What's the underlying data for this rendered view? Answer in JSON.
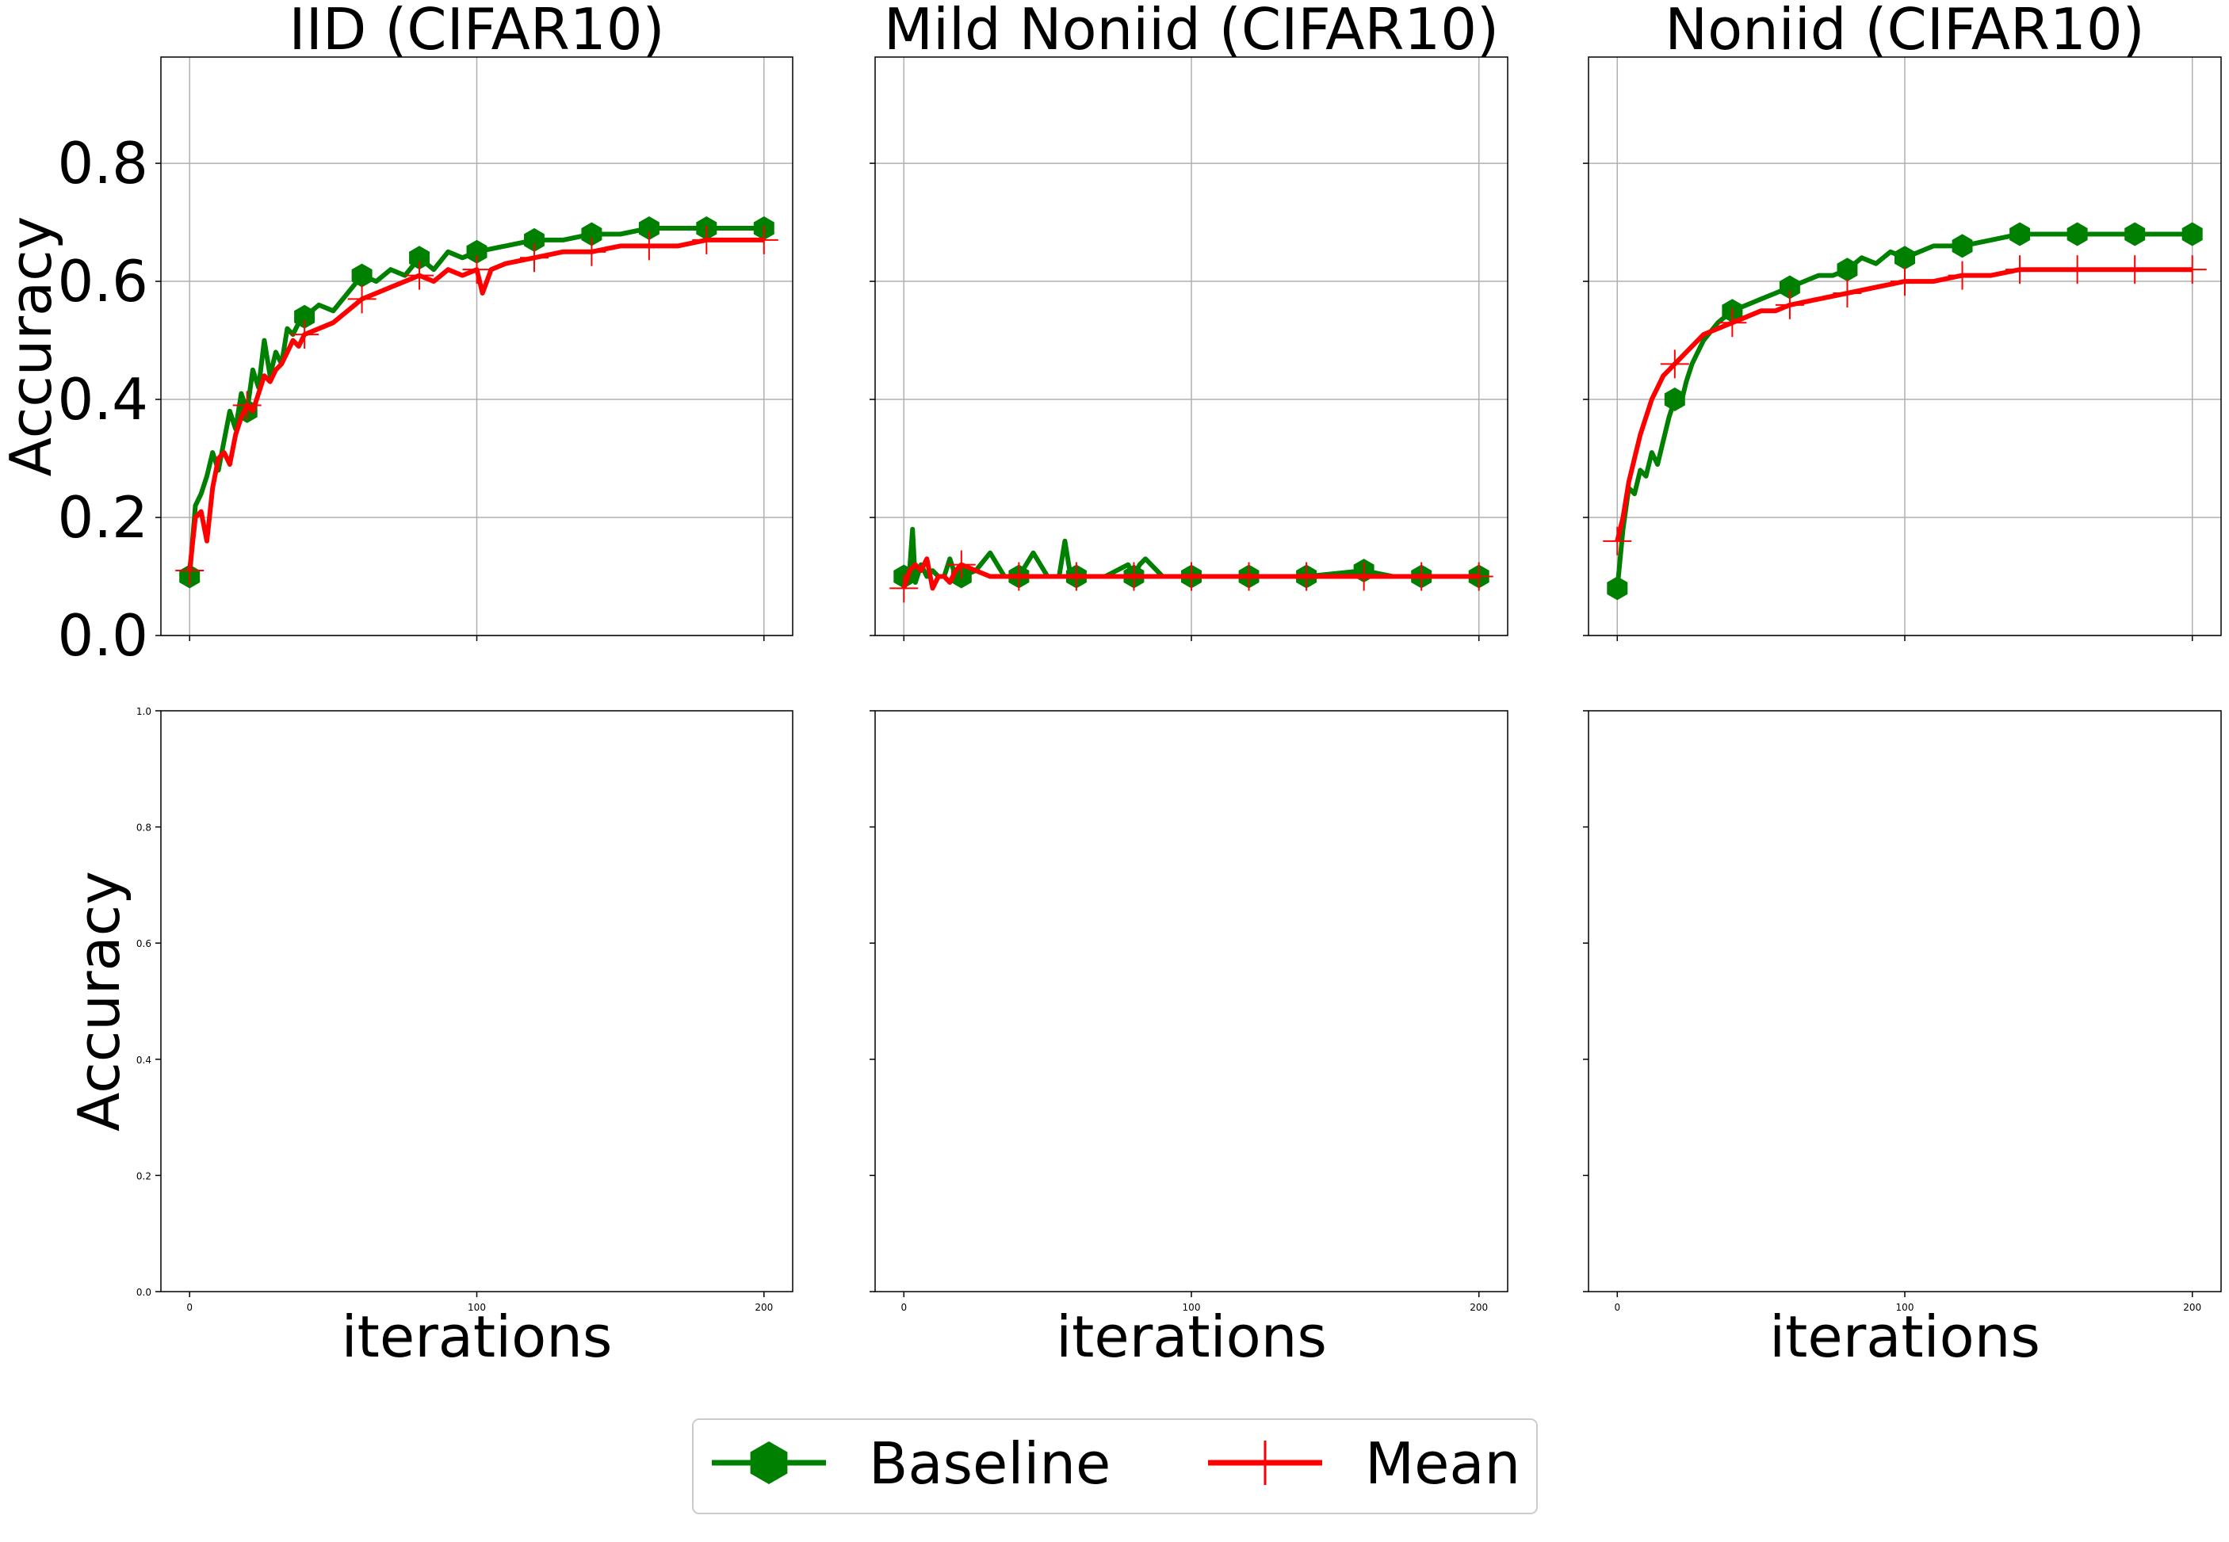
{
  "figure": {
    "legend_position": "bottom-center",
    "series_styles": [
      {
        "name": "Baseline",
        "color": "#008000",
        "marker": "hexagon"
      },
      {
        "name": "Mean",
        "color": "#ff0000",
        "marker": "plus"
      }
    ]
  },
  "chart_data": [
    {
      "type": "line",
      "title": "IID (CIFAR10)",
      "xlabel": "",
      "ylabel": "Accuracy",
      "xlim": [
        -10,
        210
      ],
      "ylim": [
        0,
        0.98
      ],
      "yticks": [
        "0.0",
        "0.2",
        "0.4",
        "0.6",
        "0.8"
      ],
      "xticks": [
        "0",
        "100",
        "200"
      ],
      "show_xticklabels": false,
      "grid": true,
      "series": [
        {
          "name": "Baseline",
          "x": [
            0,
            2,
            4,
            6,
            8,
            10,
            12,
            14,
            16,
            18,
            20,
            22,
            24,
            26,
            28,
            30,
            32,
            34,
            36,
            38,
            40,
            45,
            50,
            55,
            60,
            65,
            70,
            75,
            80,
            85,
            90,
            95,
            100,
            110,
            120,
            130,
            140,
            150,
            160,
            170,
            180,
            190,
            200
          ],
          "y": [
            0.1,
            0.22,
            0.24,
            0.27,
            0.31,
            0.28,
            0.33,
            0.38,
            0.35,
            0.41,
            0.38,
            0.45,
            0.42,
            0.5,
            0.44,
            0.48,
            0.46,
            0.52,
            0.51,
            0.53,
            0.54,
            0.56,
            0.55,
            0.58,
            0.61,
            0.6,
            0.62,
            0.61,
            0.64,
            0.62,
            0.65,
            0.64,
            0.65,
            0.66,
            0.67,
            0.67,
            0.68,
            0.68,
            0.69,
            0.69,
            0.69,
            0.69,
            0.69
          ]
        },
        {
          "name": "Mean",
          "x": [
            0,
            2,
            4,
            6,
            8,
            10,
            12,
            14,
            16,
            18,
            20,
            22,
            24,
            26,
            28,
            30,
            32,
            34,
            36,
            38,
            40,
            45,
            50,
            55,
            60,
            65,
            70,
            75,
            80,
            85,
            90,
            95,
            100,
            102,
            105,
            110,
            120,
            130,
            140,
            150,
            160,
            170,
            180,
            190,
            200
          ],
          "y": [
            0.11,
            0.2,
            0.21,
            0.16,
            0.25,
            0.3,
            0.31,
            0.29,
            0.34,
            0.37,
            0.39,
            0.38,
            0.41,
            0.44,
            0.43,
            0.45,
            0.46,
            0.48,
            0.5,
            0.49,
            0.51,
            0.52,
            0.53,
            0.55,
            0.57,
            0.58,
            0.59,
            0.6,
            0.61,
            0.6,
            0.62,
            0.61,
            0.62,
            0.58,
            0.62,
            0.63,
            0.64,
            0.65,
            0.65,
            0.66,
            0.66,
            0.66,
            0.67,
            0.67,
            0.67
          ]
        }
      ]
    },
    {
      "type": "line",
      "title": "Mild Noniid (CIFAR10)",
      "xlabel": "",
      "ylabel": "",
      "xlim": [
        -10,
        210
      ],
      "ylim": [
        0,
        0.98
      ],
      "xticks": [
        "0",
        "100",
        "200"
      ],
      "show_xticklabels": false,
      "show_yticklabels": false,
      "grid": true,
      "series": [
        {
          "name": "Baseline",
          "x": [
            0,
            2,
            3,
            4,
            6,
            8,
            10,
            12,
            14,
            16,
            18,
            20,
            25,
            30,
            35,
            40,
            45,
            50,
            54,
            56,
            58,
            60,
            70,
            78,
            80,
            82,
            84,
            86,
            90,
            100,
            120,
            140,
            160,
            170,
            180,
            200
          ],
          "y": [
            0.1,
            0.11,
            0.18,
            0.09,
            0.12,
            0.1,
            0.11,
            0.1,
            0.1,
            0.13,
            0.1,
            0.1,
            0.11,
            0.14,
            0.1,
            0.1,
            0.14,
            0.1,
            0.1,
            0.16,
            0.1,
            0.1,
            0.1,
            0.12,
            0.1,
            0.12,
            0.13,
            0.12,
            0.1,
            0.1,
            0.1,
            0.1,
            0.11,
            0.1,
            0.1,
            0.1
          ]
        },
        {
          "name": "Mean",
          "x": [
            0,
            2,
            4,
            6,
            8,
            10,
            12,
            14,
            16,
            18,
            20,
            25,
            30,
            35,
            40,
            50,
            60,
            80,
            100,
            120,
            140,
            160,
            180,
            200
          ],
          "y": [
            0.08,
            0.11,
            0.12,
            0.11,
            0.13,
            0.08,
            0.1,
            0.1,
            0.09,
            0.11,
            0.12,
            0.11,
            0.1,
            0.1,
            0.1,
            0.1,
            0.1,
            0.1,
            0.1,
            0.1,
            0.1,
            0.1,
            0.1,
            0.1
          ]
        }
      ]
    },
    {
      "type": "line",
      "title": "Noniid (CIFAR10)",
      "xlabel": "",
      "ylabel": "",
      "xlim": [
        -10,
        210
      ],
      "ylim": [
        0,
        0.98
      ],
      "xticks": [
        "0",
        "100",
        "200"
      ],
      "show_xticklabels": false,
      "show_yticklabels": false,
      "grid": true,
      "series": [
        {
          "name": "Baseline",
          "x": [
            0,
            2,
            4,
            6,
            8,
            10,
            12,
            14,
            16,
            18,
            20,
            22,
            24,
            26,
            28,
            30,
            35,
            40,
            45,
            50,
            55,
            60,
            65,
            70,
            75,
            80,
            85,
            90,
            95,
            100,
            110,
            120,
            130,
            140,
            150,
            160,
            170,
            180,
            190,
            200
          ],
          "y": [
            0.08,
            0.18,
            0.25,
            0.24,
            0.28,
            0.27,
            0.31,
            0.29,
            0.33,
            0.37,
            0.4,
            0.39,
            0.43,
            0.46,
            0.48,
            0.5,
            0.53,
            0.55,
            0.56,
            0.57,
            0.58,
            0.59,
            0.6,
            0.61,
            0.61,
            0.62,
            0.64,
            0.63,
            0.65,
            0.64,
            0.66,
            0.66,
            0.67,
            0.68,
            0.68,
            0.68,
            0.68,
            0.68,
            0.68,
            0.68
          ]
        },
        {
          "name": "Mean",
          "x": [
            0,
            2,
            4,
            6,
            8,
            10,
            12,
            14,
            16,
            18,
            20,
            22,
            24,
            26,
            28,
            30,
            35,
            40,
            45,
            50,
            55,
            60,
            70,
            80,
            90,
            100,
            110,
            120,
            130,
            140,
            150,
            160,
            170,
            180,
            190,
            200
          ],
          "y": [
            0.16,
            0.2,
            0.26,
            0.3,
            0.34,
            0.37,
            0.4,
            0.42,
            0.44,
            0.45,
            0.46,
            0.47,
            0.48,
            0.49,
            0.5,
            0.51,
            0.52,
            0.53,
            0.54,
            0.55,
            0.55,
            0.56,
            0.57,
            0.58,
            0.59,
            0.6,
            0.6,
            0.61,
            0.61,
            0.62,
            0.62,
            0.62,
            0.62,
            0.62,
            0.62,
            0.62
          ]
        }
      ]
    },
    {
      "type": "line",
      "title": "",
      "xlabel": "iterations",
      "ylabel": "Accuracy",
      "xlim": [
        -10,
        210
      ],
      "ylim": [
        0,
        1.0
      ],
      "yticks": [
        "0.0",
        "0.2",
        "0.4",
        "0.6",
        "0.8",
        "1.0"
      ],
      "xticks": [
        "0",
        "100",
        "200"
      ],
      "grid": false,
      "series": []
    },
    {
      "type": "line",
      "title": "",
      "xlabel": "iterations",
      "ylabel": "",
      "xlim": [
        -10,
        210
      ],
      "ylim": [
        0,
        1.0
      ],
      "xticks": [
        "0",
        "100",
        "200"
      ],
      "show_yticklabels": false,
      "grid": false,
      "series": []
    },
    {
      "type": "line",
      "title": "",
      "xlabel": "iterations",
      "ylabel": "",
      "xlim": [
        -10,
        210
      ],
      "ylim": [
        0,
        1.0
      ],
      "xticks": [
        "0",
        "100",
        "200"
      ],
      "show_yticklabels": false,
      "grid": false,
      "series": []
    }
  ],
  "legend": {
    "entries": [
      {
        "label": "Baseline",
        "color": "#008000",
        "marker": "hexagon"
      },
      {
        "label": "Mean",
        "color": "#ff0000",
        "marker": "plus"
      }
    ]
  }
}
